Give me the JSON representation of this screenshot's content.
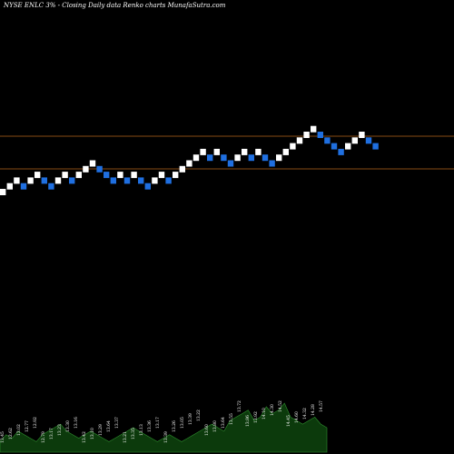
{
  "header": {
    "title": "NYSE ENLC 3% - Closing Daily data Renko charts MunafaSutra.com"
  },
  "colors": {
    "background": "#000000",
    "up_brick": "#ffffff",
    "down_brick": "#1f6fe0",
    "reference_line": "#b5651d",
    "volume_fill": "#0c3a0c",
    "volume_stroke": "#2f8f2f"
  },
  "chart_data": {
    "type": "renko",
    "title": "NYSE ENLC 3% - Closing Daily data Renko charts MunafaSutra.com",
    "brick_pct": 3,
    "bricks": [
      {
        "dir": "up",
        "level": 0
      },
      {
        "dir": "up",
        "level": 1
      },
      {
        "dir": "up",
        "level": 2
      },
      {
        "dir": "down",
        "level": 1
      },
      {
        "dir": "up",
        "level": 2
      },
      {
        "dir": "up",
        "level": 3
      },
      {
        "dir": "down",
        "level": 2
      },
      {
        "dir": "down",
        "level": 1
      },
      {
        "dir": "up",
        "level": 2
      },
      {
        "dir": "up",
        "level": 3
      },
      {
        "dir": "down",
        "level": 2
      },
      {
        "dir": "up",
        "level": 3
      },
      {
        "dir": "up",
        "level": 4
      },
      {
        "dir": "up",
        "level": 5
      },
      {
        "dir": "down",
        "level": 4
      },
      {
        "dir": "down",
        "level": 3
      },
      {
        "dir": "down",
        "level": 2
      },
      {
        "dir": "up",
        "level": 3
      },
      {
        "dir": "down",
        "level": 2
      },
      {
        "dir": "up",
        "level": 3
      },
      {
        "dir": "down",
        "level": 2
      },
      {
        "dir": "down",
        "level": 1
      },
      {
        "dir": "up",
        "level": 2
      },
      {
        "dir": "up",
        "level": 3
      },
      {
        "dir": "down",
        "level": 2
      },
      {
        "dir": "up",
        "level": 3
      },
      {
        "dir": "up",
        "level": 4
      },
      {
        "dir": "up",
        "level": 5
      },
      {
        "dir": "up",
        "level": 6
      },
      {
        "dir": "up",
        "level": 7
      },
      {
        "dir": "down",
        "level": 6
      },
      {
        "dir": "up",
        "level": 7
      },
      {
        "dir": "down",
        "level": 6
      },
      {
        "dir": "down",
        "level": 5
      },
      {
        "dir": "up",
        "level": 6
      },
      {
        "dir": "up",
        "level": 7
      },
      {
        "dir": "down",
        "level": 6
      },
      {
        "dir": "up",
        "level": 7
      },
      {
        "dir": "down",
        "level": 6
      },
      {
        "dir": "down",
        "level": 5
      },
      {
        "dir": "up",
        "level": 6
      },
      {
        "dir": "up",
        "level": 7
      },
      {
        "dir": "up",
        "level": 8
      },
      {
        "dir": "up",
        "level": 9
      },
      {
        "dir": "up",
        "level": 10
      },
      {
        "dir": "up",
        "level": 11
      },
      {
        "dir": "down",
        "level": 10
      },
      {
        "dir": "down",
        "level": 9
      },
      {
        "dir": "down",
        "level": 8
      },
      {
        "dir": "down",
        "level": 7
      },
      {
        "dir": "up",
        "level": 8
      },
      {
        "dir": "up",
        "level": 9
      },
      {
        "dir": "up",
        "level": 10
      },
      {
        "dir": "down",
        "level": 9
      },
      {
        "dir": "down",
        "level": 8
      }
    ],
    "volume_labels": [
      "13.45",
      "12.62",
      "13.02",
      "12.77",
      "12.92",
      "12.79",
      "13.17",
      "13.23",
      "13.30",
      "13.16",
      "13.42",
      "13.10",
      "13.29",
      "13.64",
      "13.37",
      "13.21",
      "13.35",
      "13.13",
      "13.36",
      "13.17",
      "13.39",
      "13.26",
      "13.05",
      "13.39",
      "13.22",
      "13.60",
      "13.80",
      "13.64",
      "13.55",
      "13.72",
      "13.86",
      "13.92",
      "14.10",
      "14.30",
      "14.52",
      "14.45",
      "14.60",
      "14.32",
      "14.28",
      "14.57"
    ],
    "volume": [
      3,
      5,
      4,
      6,
      5,
      4,
      3,
      5,
      6,
      7,
      8,
      6,
      5,
      4,
      5,
      6,
      5,
      4,
      3,
      4,
      5,
      6,
      7,
      6,
      5,
      4,
      3,
      4,
      5,
      4,
      3,
      4,
      5,
      6,
      7,
      8,
      7,
      6,
      9,
      10,
      11,
      12,
      9,
      10,
      13,
      11,
      12,
      14,
      10,
      9,
      8,
      9,
      10,
      8,
      7
    ],
    "reference_lines": [
      "upper",
      "lower"
    ]
  }
}
